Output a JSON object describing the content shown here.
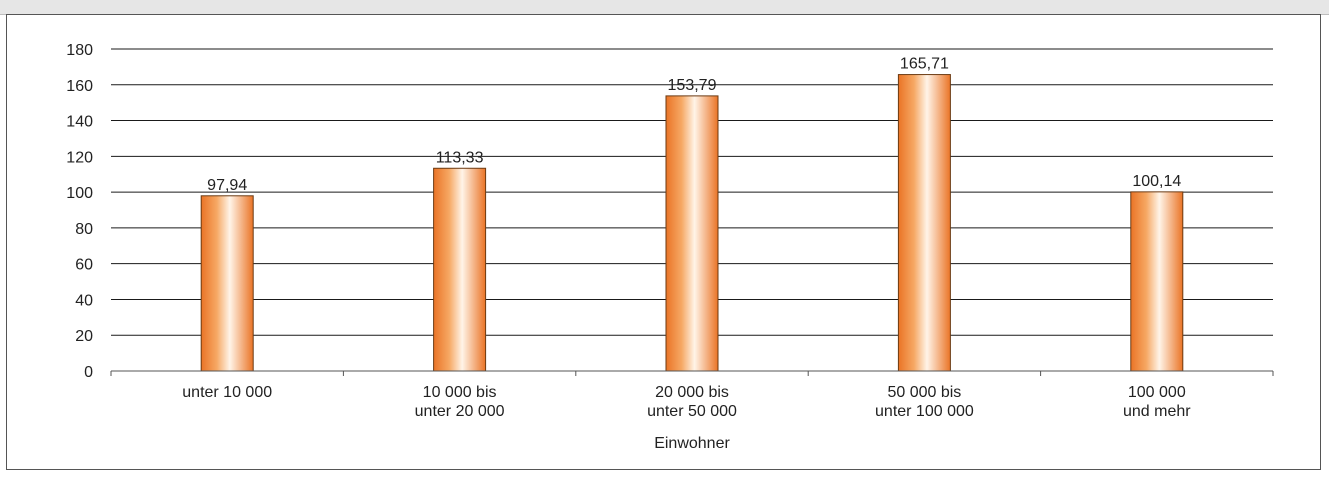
{
  "chart_data": {
    "type": "bar",
    "categories": [
      [
        "unter 10 000"
      ],
      [
        "10 000 bis",
        "unter 20 000"
      ],
      [
        "20 000 bis",
        "unter 50 000"
      ],
      [
        "50 000 bis",
        "unter 100 000"
      ],
      [
        "100 000",
        "und mehr"
      ]
    ],
    "values": [
      97.94,
      113.33,
      153.79,
      165.71,
      100.14
    ],
    "value_labels": [
      "97,94",
      "113,33",
      "153,79",
      "165,71",
      "100,14"
    ],
    "xlabel": "Einwohner",
    "ylabel": "",
    "ylim": [
      0,
      180
    ],
    "yticks": [
      0,
      20,
      40,
      60,
      80,
      100,
      120,
      140,
      160,
      180
    ],
    "grid": true,
    "legend": "none",
    "colors": {
      "bar_light": "#fff4e8",
      "bar_mid": "#f6a864",
      "bar_dark": "#ea7426",
      "bar_stroke": "#6b3a12",
      "grid": "#1a1a1a",
      "axis": "#555555"
    }
  }
}
